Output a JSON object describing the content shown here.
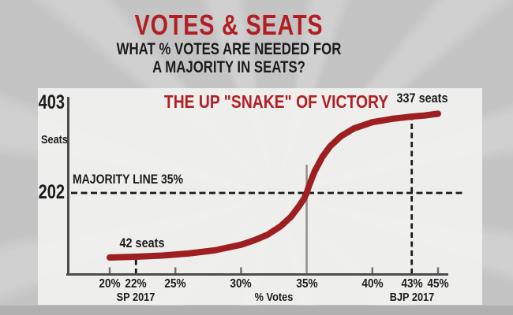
{
  "header": {
    "title": "VOTES & SEATS",
    "subtitle_line1": "WHAT % VOTES ARE NEEDED FOR",
    "subtitle_line2": "A MAJORITY IN SEATS?"
  },
  "chart_data": {
    "type": "line",
    "title": "THE UP \"SNAKE\" OF VICTORY",
    "xlabel": "% Votes",
    "ylabel": "Seats",
    "x_tick_labels": [
      "20%",
      "22%",
      "25%",
      "30%",
      "35%",
      "40%",
      "43%",
      "45%"
    ],
    "y_tick_labels": [
      "403",
      "202"
    ],
    "total_seats": 403,
    "x_range_pct": [
      20,
      45
    ],
    "y_range_seats": [
      0,
      403
    ],
    "grid": false,
    "majority": {
      "seats": 202,
      "votes_pct": 35,
      "label": "MAJORITY LINE 35%"
    },
    "key_points": [
      {
        "party": "SP 2017",
        "votes_pct": 22,
        "seats": 42,
        "label": "42 seats"
      },
      {
        "party": "BJP 2017",
        "votes_pct": 43,
        "seats": 337,
        "label": "337 seats"
      }
    ],
    "x_ticks": [
      {
        "pct": 20,
        "label": "20%",
        "style": "tick"
      },
      {
        "pct": 22,
        "label": "22%",
        "style": "dashed",
        "footnote": "SP 2017"
      },
      {
        "pct": 25,
        "label": "25%",
        "style": "tick"
      },
      {
        "pct": 30,
        "label": "30%",
        "style": "tick"
      },
      {
        "pct": 35,
        "label": "35%",
        "style": "solid"
      },
      {
        "pct": 40,
        "label": "40%",
        "style": "tick"
      },
      {
        "pct": 43,
        "label": "43%",
        "style": "dashed",
        "footnote": "BJP 2017"
      },
      {
        "pct": 45,
        "label": "45%",
        "style": "tick"
      }
    ],
    "curve": [
      [
        20,
        40
      ],
      [
        22,
        42
      ],
      [
        24,
        45
      ],
      [
        26,
        50
      ],
      [
        28,
        58
      ],
      [
        30,
        72
      ],
      [
        31,
        83
      ],
      [
        32,
        97
      ],
      [
        33,
        118
      ],
      [
        33.8,
        142
      ],
      [
        34.4,
        168
      ],
      [
        34.8,
        188
      ],
      [
        35,
        202
      ],
      [
        35.2,
        216
      ],
      [
        35.6,
        240
      ],
      [
        36.2,
        266
      ],
      [
        36.8,
        285
      ],
      [
        37.6,
        302
      ],
      [
        38.6,
        316
      ],
      [
        40,
        327
      ],
      [
        41.5,
        333
      ],
      [
        43,
        337
      ],
      [
        44,
        339
      ],
      [
        45,
        342
      ]
    ]
  },
  "colors": {
    "accent_red": "#b11f24",
    "curve_red": "#9d1f22",
    "text_black": "#1c1c1c",
    "page_bg": "#c4c4c4",
    "panel_bg": "#efefee",
    "bottom_strip": "#b0b0b0",
    "axis_gray": "#4c4c4c",
    "tick_gray": "#6f6f6f",
    "vline_gray": "#8f8f8f"
  }
}
